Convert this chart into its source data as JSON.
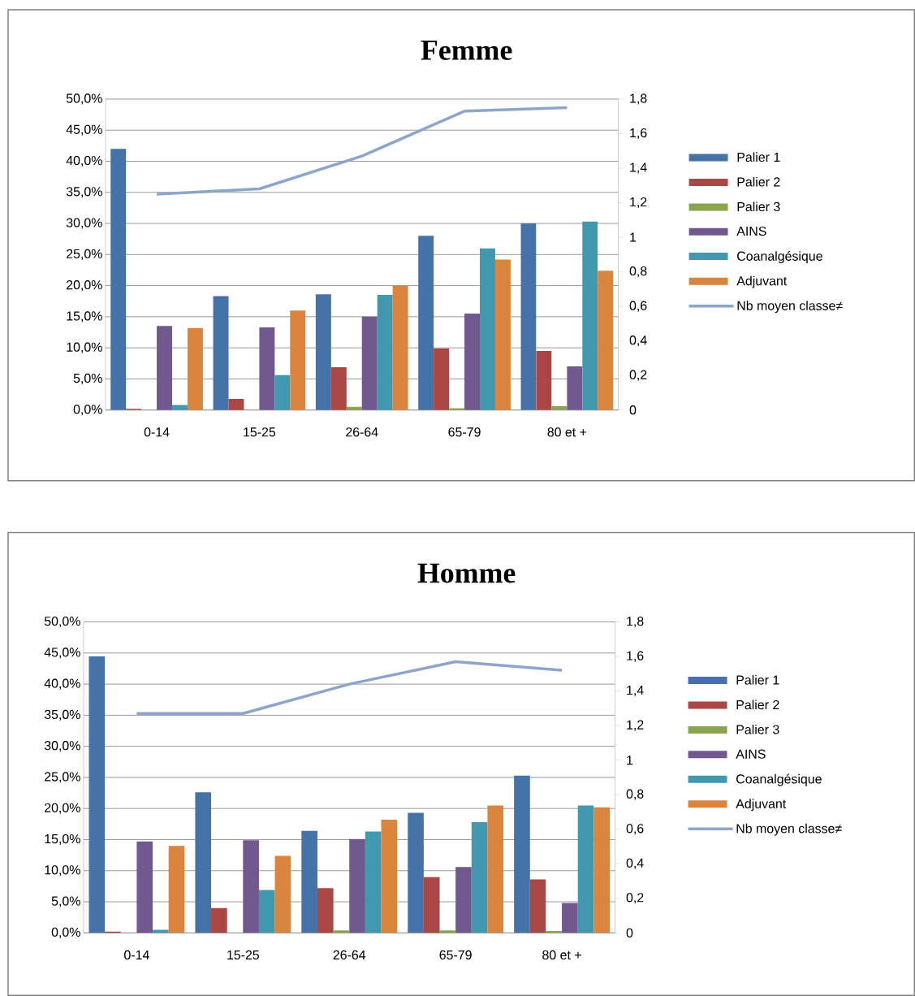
{
  "chart_data": [
    {
      "type": "bar",
      "title": "Femme",
      "categories": [
        "0-14",
        "15-25",
        "26-64",
        "65-79",
        "80 et +"
      ],
      "series": [
        {
          "name": "Palier 1",
          "color": "#4572a7",
          "values": [
            42.0,
            18.3,
            18.6,
            28.0,
            30.0
          ]
        },
        {
          "name": "Palier 2",
          "color": "#aa4643",
          "values": [
            0.2,
            1.8,
            6.9,
            9.9,
            9.5
          ]
        },
        {
          "name": "Palier 3",
          "color": "#89a54e",
          "values": [
            0,
            0,
            0.5,
            0.3,
            0.6
          ]
        },
        {
          "name": "AINS",
          "color": "#71588f",
          "values": [
            13.5,
            13.3,
            15.0,
            15.5,
            7.0
          ]
        },
        {
          "name": "Coanalgésique",
          "color": "#4198af",
          "values": [
            0.8,
            5.6,
            18.5,
            26.0,
            30.3
          ]
        },
        {
          "name": "Adjuvant",
          "color": "#db843d",
          "values": [
            13.2,
            16.0,
            20.0,
            24.2,
            22.4
          ]
        },
        {
          "name": "Nb moyen classe≠",
          "color": "#8ea5cb",
          "type": "line",
          "axis": "y2",
          "values": [
            1.25,
            1.28,
            1.47,
            1.73,
            1.75
          ]
        }
      ],
      "ylim": [
        0,
        50
      ],
      "yticks": [
        {
          "value": 0,
          "label": "0,0%"
        },
        {
          "value": 5,
          "label": "5,0%"
        },
        {
          "value": 10,
          "label": "10,0%"
        },
        {
          "value": 15,
          "label": "15,0%"
        },
        {
          "value": 20,
          "label": "20,0%"
        },
        {
          "value": 25,
          "label": "25,0%"
        },
        {
          "value": 30,
          "label": "30,0%"
        },
        {
          "value": 35,
          "label": "35,0%"
        },
        {
          "value": 40,
          "label": "40,0%"
        },
        {
          "value": 45,
          "label": "45,0%"
        },
        {
          "value": 50,
          "label": "50,0%"
        }
      ],
      "y2lim": [
        0,
        1.8
      ],
      "y2ticks": [
        0,
        {
          "value": 0.2,
          "label": "0,2"
        },
        {
          "value": 0.4,
          "label": "0,4"
        },
        {
          "value": 0.6,
          "label": "0,6"
        },
        {
          "value": 0.8,
          "label": "0,8"
        },
        1,
        {
          "value": 1.2,
          "label": "1,2"
        },
        {
          "value": 1.4,
          "label": "1,4"
        },
        {
          "value": 1.6,
          "label": "1,6"
        },
        {
          "value": 1.8,
          "label": "1,8"
        }
      ],
      "grid": "y",
      "legend": "right",
      "marker": "none"
    },
    {
      "type": "bar",
      "title": "Homme",
      "categories": [
        "0-14",
        "15-25",
        "26-64",
        "65-79",
        "80 et +"
      ],
      "series": [
        {
          "name": "Palier 1",
          "color": "#4572a7",
          "values": [
            44.5,
            22.6,
            16.4,
            19.3,
            25.3
          ]
        },
        {
          "name": "Palier 2",
          "color": "#aa4643",
          "values": [
            0.2,
            4.0,
            7.2,
            9.0,
            8.6
          ]
        },
        {
          "name": "Palier 3",
          "color": "#89a54e",
          "values": [
            0,
            0,
            0.4,
            0.4,
            0.3
          ]
        },
        {
          "name": "AINS",
          "color": "#71588f",
          "values": [
            14.7,
            14.9,
            15.1,
            10.6,
            4.8
          ]
        },
        {
          "name": "Coanalgésique",
          "color": "#4198af",
          "values": [
            0.5,
            6.9,
            16.3,
            17.8,
            20.5
          ]
        },
        {
          "name": "Adjuvant",
          "color": "#db843d",
          "values": [
            14.0,
            12.4,
            18.2,
            20.5,
            20.2
          ]
        },
        {
          "name": "Nb moyen classe≠",
          "color": "#8ea5cb",
          "type": "line",
          "axis": "y2",
          "values": [
            1.27,
            1.27,
            1.44,
            1.57,
            1.52
          ]
        }
      ],
      "ylim": [
        0,
        50
      ],
      "yticks": [
        {
          "value": 0,
          "label": "0,0%"
        },
        {
          "value": 5,
          "label": "5,0%"
        },
        {
          "value": 10,
          "label": "10,0%"
        },
        {
          "value": 15,
          "label": "15,0%"
        },
        {
          "value": 20,
          "label": "20,0%"
        },
        {
          "value": 25,
          "label": "25,0%"
        },
        {
          "value": 30,
          "label": "30,0%"
        },
        {
          "value": 35,
          "label": "35,0%"
        },
        {
          "value": 40,
          "label": "40,0%"
        },
        {
          "value": 45,
          "label": "45,0%"
        },
        {
          "value": 50,
          "label": "50,0%"
        }
      ],
      "y2lim": [
        0,
        1.8
      ],
      "y2ticks": [
        0,
        {
          "value": 0.2,
          "label": "0,2"
        },
        {
          "value": 0.4,
          "label": "0,4"
        },
        {
          "value": 0.6,
          "label": "0,6"
        },
        {
          "value": 0.8,
          "label": "0,8"
        },
        1,
        {
          "value": 1.2,
          "label": "1,2"
        },
        {
          "value": 1.4,
          "label": "1,4"
        },
        {
          "value": 1.6,
          "label": "1,6"
        },
        {
          "value": 1.8,
          "label": "1,8"
        }
      ],
      "grid": "y",
      "legend": "right",
      "marker": "none"
    }
  ]
}
